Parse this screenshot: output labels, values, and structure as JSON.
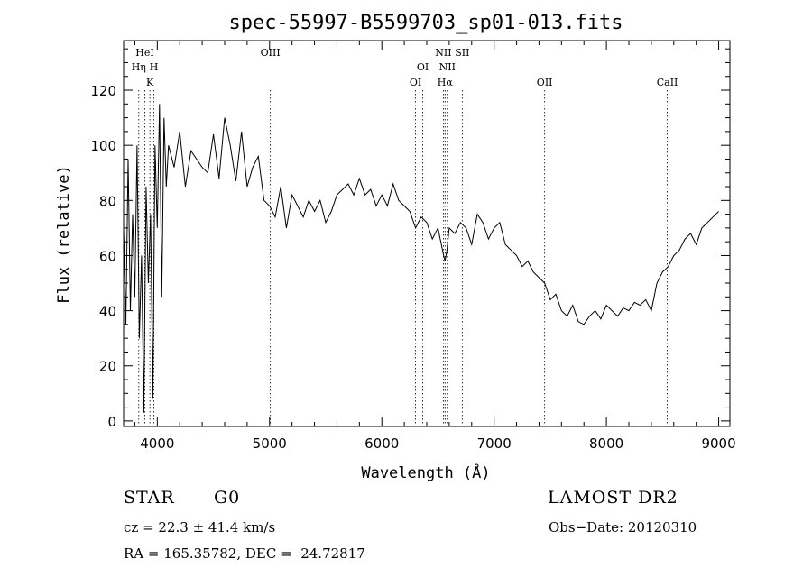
{
  "chart_data": {
    "type": "line",
    "title": "spec-55997-B5599703_sp01-013.fits",
    "xlabel": "Wavelength (Å)",
    "ylabel": "Flux (relative)",
    "xlim": [
      3700,
      9100
    ],
    "ylim": [
      -2,
      138
    ],
    "xticks": [
      4000,
      5000,
      6000,
      7000,
      8000,
      9000
    ],
    "yticks": [
      0,
      20,
      40,
      60,
      80,
      100,
      120
    ],
    "grid": false,
    "series": [
      {
        "x": [
          3700,
          3720,
          3740,
          3760,
          3780,
          3800,
          3820,
          3840,
          3860,
          3880,
          3900,
          3920,
          3940,
          3960,
          3980,
          4000,
          4020,
          4040,
          4060,
          4080,
          4100,
          4150,
          4200,
          4250,
          4300,
          4350,
          4400,
          4450,
          4500,
          4550,
          4600,
          4650,
          4700,
          4750,
          4800,
          4850,
          4900,
          4950,
          5000,
          5050,
          5100,
          5150,
          5200,
          5250,
          5300,
          5350,
          5400,
          5450,
          5500,
          5550,
          5600,
          5650,
          5700,
          5750,
          5800,
          5850,
          5900,
          5950,
          6000,
          6050,
          6100,
          6150,
          6200,
          6250,
          6300,
          6350,
          6400,
          6450,
          6500,
          6550,
          6563,
          6580,
          6600,
          6650,
          6700,
          6750,
          6800,
          6850,
          6900,
          6950,
          7000,
          7050,
          7100,
          7150,
          7200,
          7250,
          7300,
          7350,
          7400,
          7450,
          7500,
          7550,
          7600,
          7650,
          7700,
          7750,
          7800,
          7850,
          7900,
          7950,
          8000,
          8050,
          8100,
          8150,
          8200,
          8250,
          8300,
          8350,
          8400,
          8450,
          8500,
          8550,
          8600,
          8650,
          8700,
          8750,
          8800,
          8850,
          8900,
          8950,
          9000
        ],
        "y": [
          70,
          35,
          95,
          40,
          75,
          45,
          100,
          30,
          60,
          3,
          85,
          50,
          75,
          8,
          100,
          70,
          115,
          45,
          110,
          85,
          100,
          92,
          105,
          85,
          98,
          95,
          92,
          90,
          104,
          88,
          110,
          100,
          87,
          105,
          85,
          92,
          96,
          80,
          78,
          74,
          85,
          70,
          82,
          78,
          74,
          80,
          76,
          80,
          72,
          76,
          82,
          84,
          86,
          82,
          88,
          82,
          84,
          78,
          82,
          78,
          86,
          80,
          78,
          76,
          70,
          74,
          72,
          66,
          70,
          60,
          58,
          62,
          70,
          68,
          72,
          70,
          64,
          75,
          72,
          66,
          70,
          72,
          64,
          62,
          60,
          56,
          58,
          54,
          52,
          50,
          44,
          46,
          40,
          38,
          42,
          36,
          35,
          38,
          40,
          37,
          42,
          40,
          38,
          41,
          40,
          43,
          42,
          44,
          40,
          50,
          54,
          56,
          60,
          62,
          66,
          68,
          64,
          70,
          72,
          74,
          76
        ]
      }
    ],
    "lines": [
      {
        "label": "HeI",
        "x": 3889
      },
      {
        "label": "Hη",
        "x": 3835
      },
      {
        "label": "H",
        "x": 3970
      },
      {
        "label": "K",
        "x": 3934
      },
      {
        "label": "OIII",
        "x": 5007
      },
      {
        "label": "OI",
        "x": 6300
      },
      {
        "label": "OI",
        "x": 6364
      },
      {
        "label": "NII",
        "x": 6548
      },
      {
        "label": "NII",
        "x": 6583
      },
      {
        "label": "Hα",
        "x": 6563
      },
      {
        "label": "SII",
        "x": 6716
      },
      {
        "label": "OII",
        "x": 7450
      },
      {
        "label": "CaII",
        "x": 8542
      }
    ]
  },
  "footer": {
    "object_class": "STAR",
    "subclass": "G0",
    "survey": "LAMOST DR2",
    "redshift": "cz = 22.3 ± 41.4 km/s",
    "obs_date": "Obs−Date: 20120310",
    "coords": "RA = 165.35782, DEC =  24.72817"
  }
}
